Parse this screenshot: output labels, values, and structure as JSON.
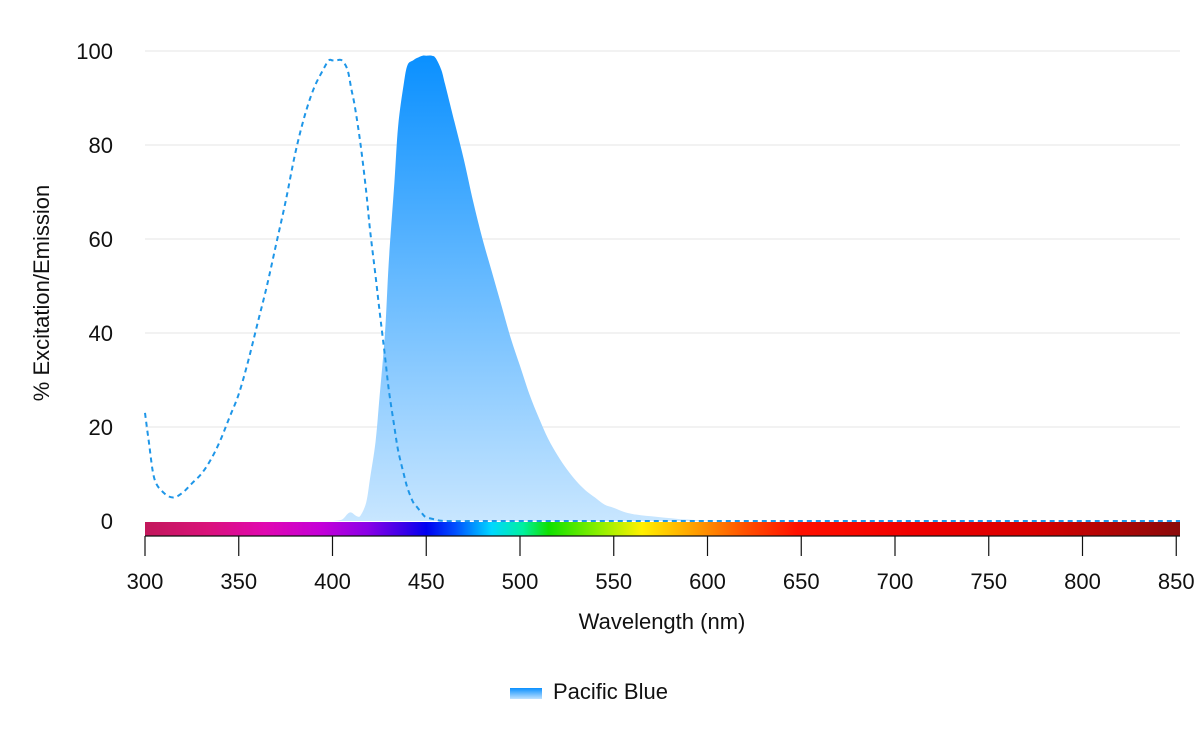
{
  "chart_data": {
    "type": "area",
    "xlabel": "Wavelength (nm)",
    "ylabel": "% Excitation/Emission",
    "xlim": [
      300,
      852
    ],
    "ylim": [
      0,
      100
    ],
    "x_ticks": [
      300,
      350,
      400,
      450,
      500,
      550,
      600,
      650,
      700,
      750,
      800,
      850
    ],
    "y_ticks": [
      0,
      20,
      40,
      60,
      80,
      100
    ],
    "grid": "horizontal",
    "legend_position": "bottom-center",
    "spectrum_bar": true,
    "series": [
      {
        "name": "Pacific Blue",
        "role": "excitation",
        "style": "dashed-line",
        "color": "#1E96E8",
        "x": [
          300,
          302,
          305,
          310,
          315,
          320,
          325,
          330,
          335,
          340,
          345,
          350,
          355,
          360,
          365,
          370,
          375,
          380,
          385,
          390,
          395,
          398,
          400,
          402,
          405,
          408,
          410,
          412,
          415,
          418,
          420,
          423,
          425,
          428,
          430,
          433,
          435,
          438,
          440,
          443,
          445,
          448,
          450,
          455,
          460,
          480,
          500,
          550,
          600,
          650,
          700,
          750,
          800,
          852
        ],
        "y": [
          23,
          17,
          9,
          6,
          5,
          6,
          8,
          10,
          13,
          17,
          22,
          27,
          34,
          42,
          50,
          59,
          68,
          78,
          86,
          92,
          96,
          98,
          98,
          98,
          98,
          96,
          92,
          88,
          80,
          70,
          62,
          52,
          45,
          35,
          28,
          20,
          15,
          10,
          7,
          4,
          3,
          1.5,
          0.8,
          0.3,
          0,
          0,
          0,
          0,
          0,
          0,
          0,
          0,
          0,
          0
        ]
      },
      {
        "name": "Pacific Blue",
        "role": "emission",
        "style": "filled-area",
        "color": "#0A90FF",
        "x": [
          400,
          405,
          408,
          410,
          413,
          415,
          418,
          420,
          423,
          425,
          428,
          430,
          433,
          435,
          438,
          440,
          443,
          445,
          448,
          450,
          453,
          455,
          458,
          460,
          465,
          470,
          475,
          480,
          485,
          490,
          495,
          500,
          505,
          510,
          515,
          520,
          525,
          530,
          535,
          540,
          545,
          550,
          555,
          560,
          565,
          570,
          575,
          580,
          585,
          590,
          600,
          620,
          650,
          700,
          750,
          800,
          852
        ],
        "y": [
          0,
          0.3,
          1.5,
          1.8,
          1.0,
          1.2,
          4,
          9,
          17,
          26,
          40,
          55,
          72,
          84,
          93,
          97,
          98,
          98.5,
          99,
          99,
          99,
          98.5,
          96,
          93,
          85,
          77,
          68,
          60,
          53,
          46,
          39,
          33,
          27,
          22,
          17.5,
          14,
          11,
          8.5,
          6.5,
          5,
          3.5,
          2.8,
          2.0,
          1.5,
          1.2,
          1.0,
          0.8,
          0.6,
          0.4,
          0.3,
          0.1,
          0,
          0,
          0,
          0,
          0,
          0
        ]
      }
    ]
  },
  "legend": {
    "label": "Pacific Blue",
    "color_top": "#0A90FF",
    "color_bottom": "#BFE2FF"
  },
  "colors": {
    "excitation": "#1E96E8",
    "emission_top": "#0A90FF",
    "emission_bottom": "#C8E6FF",
    "grid": "#e6e6e6"
  }
}
